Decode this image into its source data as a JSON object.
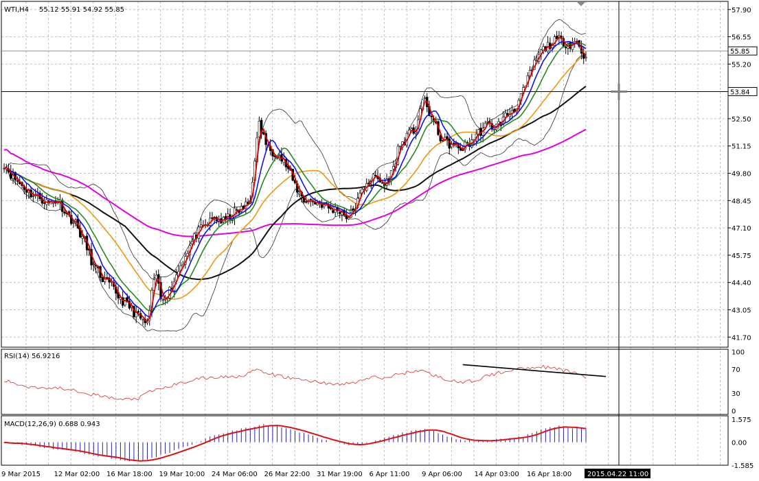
{
  "chart_data": {
    "type": "candlestick",
    "symbol_info": "WTI,H4",
    "ohlc_text": "55.12 55.91 54.92 55.85",
    "main": {
      "ylim": [
        41.2,
        58.3
      ],
      "yticks": [
        "57.90",
        "56.55",
        "55.20",
        "52.50",
        "51.15",
        "49.80",
        "48.45",
        "47.10",
        "45.75",
        "44.40",
        "43.05",
        "41.70"
      ],
      "price_tag": "55.85",
      "crosshair_price": "53.84",
      "anchors": [
        [
          0,
          50.3
        ],
        [
          4,
          49.6
        ],
        [
          8,
          49.2
        ],
        [
          12,
          48.8
        ],
        [
          16,
          48.6
        ],
        [
          20,
          48.3
        ],
        [
          24,
          48.5
        ],
        [
          28,
          47.8
        ],
        [
          32,
          47.3
        ],
        [
          36,
          46.4
        ],
        [
          40,
          45.2
        ],
        [
          44,
          44.6
        ],
        [
          48,
          44.2
        ],
        [
          52,
          43.6
        ],
        [
          56,
          43.2
        ],
        [
          60,
          42.7
        ],
        [
          64,
          42.3
        ],
        [
          66,
          43.8
        ],
        [
          68,
          44.8
        ],
        [
          70,
          43.6
        ],
        [
          74,
          44.0
        ],
        [
          78,
          45.0
        ],
        [
          82,
          46.0
        ],
        [
          86,
          46.8
        ],
        [
          90,
          47.2
        ],
        [
          94,
          47.6
        ],
        [
          98,
          47.4
        ],
        [
          102,
          47.8
        ],
        [
          106,
          48.0
        ],
        [
          110,
          48.4
        ],
        [
          112,
          50.6
        ],
        [
          114,
          52.2
        ],
        [
          116,
          51.6
        ],
        [
          118,
          51.0
        ],
        [
          122,
          50.8
        ],
        [
          126,
          50.2
        ],
        [
          130,
          49.2
        ],
        [
          134,
          48.5
        ],
        [
          138,
          48.4
        ],
        [
          142,
          48.3
        ],
        [
          146,
          48.0
        ],
        [
          150,
          48.0
        ],
        [
          154,
          47.6
        ],
        [
          158,
          48.4
        ],
        [
          162,
          49.4
        ],
        [
          166,
          49.6
        ],
        [
          170,
          49.2
        ],
        [
          174,
          50.0
        ],
        [
          176,
          51.0
        ],
        [
          180,
          51.6
        ],
        [
          184,
          52.0
        ],
        [
          186,
          53.0
        ],
        [
          188,
          53.4
        ],
        [
          190,
          52.8
        ],
        [
          194,
          51.8
        ],
        [
          196,
          51.4
        ],
        [
          200,
          51.2
        ],
        [
          204,
          51.0
        ],
        [
          208,
          51.3
        ],
        [
          212,
          51.8
        ],
        [
          216,
          52.2
        ],
        [
          220,
          52.1
        ],
        [
          224,
          52.6
        ],
        [
          228,
          53.0
        ],
        [
          232,
          53.8
        ],
        [
          236,
          55.0
        ],
        [
          240,
          55.8
        ],
        [
          244,
          56.2
        ],
        [
          248,
          56.4
        ],
        [
          252,
          56.2
        ],
        [
          256,
          56.3
        ],
        [
          260,
          55.4
        ]
      ],
      "series": [
        {
          "color": "#e00000"
        },
        {
          "color": "#1010ee"
        },
        {
          "color": "#208a20"
        },
        {
          "color": "#f0960a"
        },
        {
          "color": "#101010"
        },
        {
          "color": "#e000e0"
        },
        {
          "color": "#303030"
        }
      ]
    },
    "rsi": {
      "label": "RSI(14) 56.9216",
      "ticks": [
        "100",
        "70",
        "30",
        "0"
      ],
      "color": "#e04040",
      "anchors": [
        [
          0,
          52
        ],
        [
          10,
          42
        ],
        [
          20,
          40
        ],
        [
          30,
          38
        ],
        [
          40,
          28
        ],
        [
          52,
          20
        ],
        [
          60,
          22
        ],
        [
          66,
          35
        ],
        [
          70,
          38
        ],
        [
          76,
          45
        ],
        [
          86,
          55
        ],
        [
          96,
          58
        ],
        [
          106,
          60
        ],
        [
          112,
          70
        ],
        [
          116,
          66
        ],
        [
          120,
          62
        ],
        [
          130,
          55
        ],
        [
          140,
          50
        ],
        [
          150,
          45
        ],
        [
          158,
          50
        ],
        [
          164,
          58
        ],
        [
          170,
          56
        ],
        [
          176,
          63
        ],
        [
          186,
          70
        ],
        [
          190,
          64
        ],
        [
          196,
          56
        ],
        [
          204,
          48
        ],
        [
          210,
          52
        ],
        [
          216,
          60
        ],
        [
          226,
          70
        ],
        [
          234,
          74
        ],
        [
          240,
          76
        ],
        [
          246,
          72
        ],
        [
          252,
          68
        ],
        [
          258,
          62
        ],
        [
          260,
          57
        ]
      ]
    },
    "macd": {
      "label": "MACD(12,26,9) 0.688 0.943",
      "ticks": [
        "1.575",
        "0.00",
        "-1.585"
      ],
      "color": "#e01010",
      "anchors": [
        [
          0,
          0.0
        ],
        [
          10,
          -0.2
        ],
        [
          20,
          -0.4
        ],
        [
          30,
          -0.6
        ],
        [
          40,
          -0.9
        ],
        [
          52,
          -1.2
        ],
        [
          58,
          -1.3
        ],
        [
          64,
          -1.2
        ],
        [
          70,
          -0.9
        ],
        [
          78,
          -0.5
        ],
        [
          86,
          0.0
        ],
        [
          94,
          0.5
        ],
        [
          102,
          0.8
        ],
        [
          110,
          1.0
        ],
        [
          116,
          1.2
        ],
        [
          122,
          1.1
        ],
        [
          130,
          0.8
        ],
        [
          140,
          0.3
        ],
        [
          150,
          -0.1
        ],
        [
          156,
          -0.2
        ],
        [
          162,
          0.0
        ],
        [
          170,
          0.3
        ],
        [
          180,
          0.7
        ],
        [
          186,
          0.9
        ],
        [
          192,
          0.8
        ],
        [
          198,
          0.4
        ],
        [
          206,
          0.1
        ],
        [
          214,
          0.1
        ],
        [
          222,
          0.2
        ],
        [
          232,
          0.4
        ],
        [
          240,
          0.9
        ],
        [
          248,
          1.1
        ],
        [
          254,
          1.0
        ],
        [
          260,
          0.9
        ]
      ]
    },
    "x_labels": [
      "9 Mar 2015",
      "12 Mar 02:00",
      "16 Mar 18:00",
      "19 Mar 10:00",
      "24 Mar 06:00",
      "26 Mar 22:00",
      "31 Mar 19:00",
      "6 Apr 11:00",
      "9 Apr 06:00",
      "14 Apr 03:00",
      "16 Apr 18:00"
    ],
    "crosshair_time": "2015.04.22 11:00"
  }
}
